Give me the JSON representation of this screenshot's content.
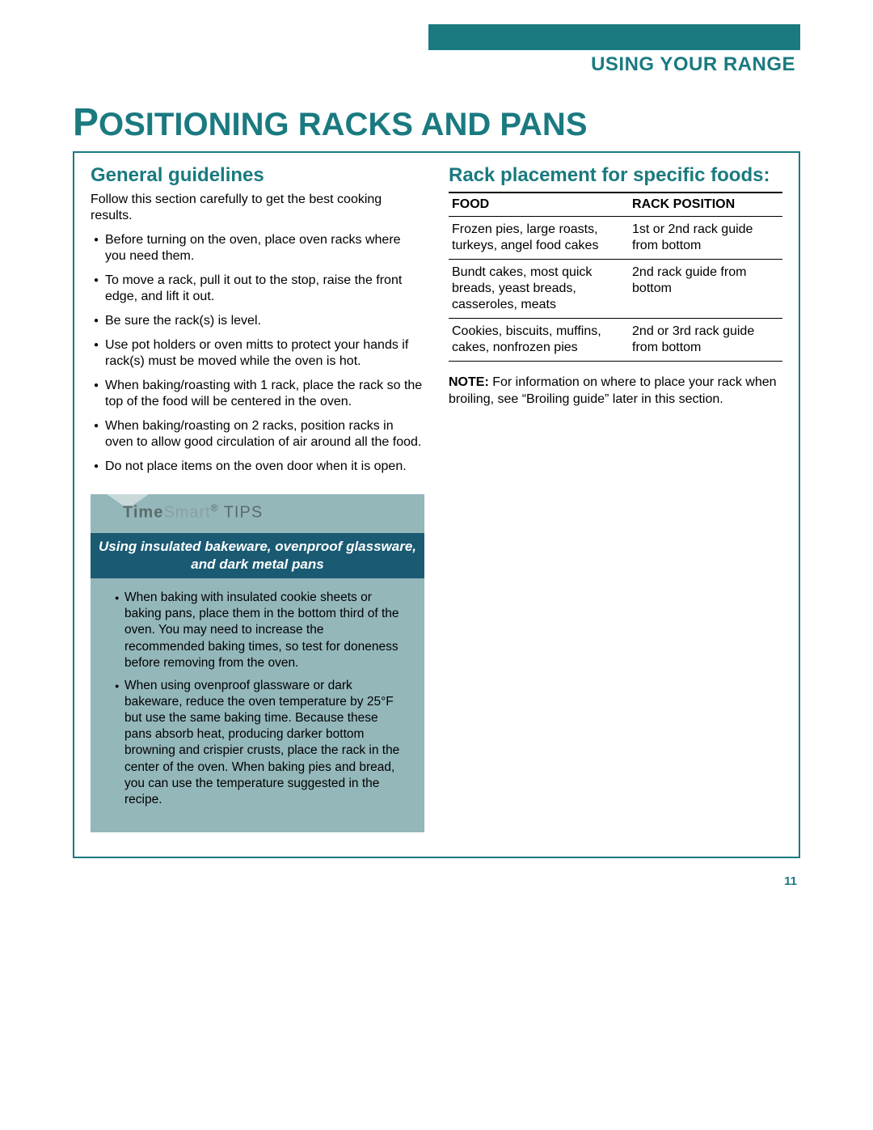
{
  "colors": {
    "teal": "#1a7a80",
    "tips_bg": "#94b7ba",
    "tips_bar": "#1a5a72"
  },
  "header": {
    "section_tab": "USING YOUR RANGE"
  },
  "title": {
    "first_word_initial": "P",
    "first_word_rest": "OSITIONING",
    "rest": " RACKS AND PANS"
  },
  "left": {
    "subheading": "General guidelines",
    "intro": "Follow this section carefully to get the best cooking results.",
    "bullets": [
      "Before turning on the oven, place oven racks where you need them.",
      "To move a rack, pull it out to the stop, raise the front edge, and lift it out.",
      "Be sure the rack(s) is level.",
      "Use pot holders or oven mitts to protect your hands if rack(s) must be moved while the oven is hot.",
      "When baking/roasting with 1 rack, place the rack so the top of the food will be centered in the oven.",
      "When baking/roasting on 2 racks, position racks in oven to allow good circulation of air around all the food.",
      "Do not place items on the oven door when it is open."
    ]
  },
  "tips": {
    "brand_bold": "Time",
    "brand_light": "Smart",
    "reg": "®",
    "label": " TIPS",
    "subheading": "Using insulated bakeware, ovenproof glassware, and dark metal pans",
    "bullets": [
      "When baking with insulated cookie sheets or baking pans, place them in the bottom third of the oven. You may need to increase the recommended baking times, so test for doneness before removing from the oven.",
      "When using ovenproof glassware or dark bakeware, reduce the oven temperature by 25°F but use the same baking time. Because these pans absorb heat, producing darker bottom browning and crispier crusts, place the rack in the center of the oven. When baking pies and bread, you can use the temperature suggested in the recipe."
    ]
  },
  "right": {
    "subheading": "Rack placement for specific foods:",
    "table": {
      "head_food": "FOOD",
      "head_pos": "RACK POSITION",
      "rows": [
        {
          "food": "Frozen pies, large roasts, turkeys, angel food cakes",
          "pos": "1st or 2nd rack guide from bottom"
        },
        {
          "food": "Bundt cakes, most quick breads, yeast breads, casseroles, meats",
          "pos": "2nd rack guide from bottom"
        },
        {
          "food": "Cookies, biscuits, muffins, cakes, nonfrozen pies",
          "pos": "2nd or 3rd rack guide from bottom"
        }
      ]
    },
    "note_label": "NOTE:",
    "note_text": " For information on where to place your rack when broiling, see “Broiling guide” later in this section."
  },
  "page_number": "11"
}
